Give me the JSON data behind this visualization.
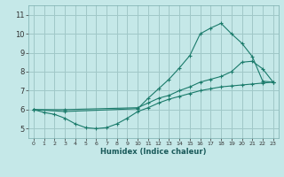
{
  "background_color": "#c5e8e8",
  "grid_color": "#a0c8c8",
  "line_color": "#1a7a6a",
  "marker": "+",
  "xlabel": "Humidex (Indice chaleur)",
  "yticks": [
    5,
    6,
    7,
    8,
    9,
    10,
    11
  ],
  "xlim": [
    -0.5,
    23.5
  ],
  "ylim": [
    4.5,
    11.5
  ],
  "series1_x": [
    0,
    1,
    2,
    3,
    4,
    5,
    6,
    7,
    8,
    9,
    10,
    11,
    12,
    13,
    14,
    15,
    16,
    17,
    18,
    19,
    20,
    21,
    22,
    23
  ],
  "series1_y": [
    6.0,
    5.85,
    5.75,
    5.55,
    5.25,
    5.05,
    5.0,
    5.05,
    5.25,
    5.55,
    5.9,
    6.1,
    6.35,
    6.55,
    6.7,
    6.85,
    7.0,
    7.1,
    7.2,
    7.25,
    7.3,
    7.35,
    7.4,
    7.45
  ],
  "series2_x": [
    0,
    3,
    10,
    11,
    12,
    13,
    14,
    15,
    16,
    17,
    18,
    19,
    20,
    21,
    22,
    23
  ],
  "series2_y": [
    6.0,
    5.9,
    6.05,
    6.6,
    7.1,
    7.6,
    8.2,
    8.85,
    10.0,
    10.3,
    10.55,
    10.0,
    9.5,
    8.8,
    7.5,
    7.45
  ],
  "series3_x": [
    0,
    3,
    10,
    11,
    12,
    13,
    14,
    15,
    16,
    17,
    18,
    19,
    20,
    21,
    22,
    23
  ],
  "series3_y": [
    6.0,
    6.0,
    6.1,
    6.35,
    6.6,
    6.75,
    7.0,
    7.2,
    7.45,
    7.6,
    7.75,
    8.0,
    8.5,
    8.55,
    8.15,
    7.45
  ]
}
